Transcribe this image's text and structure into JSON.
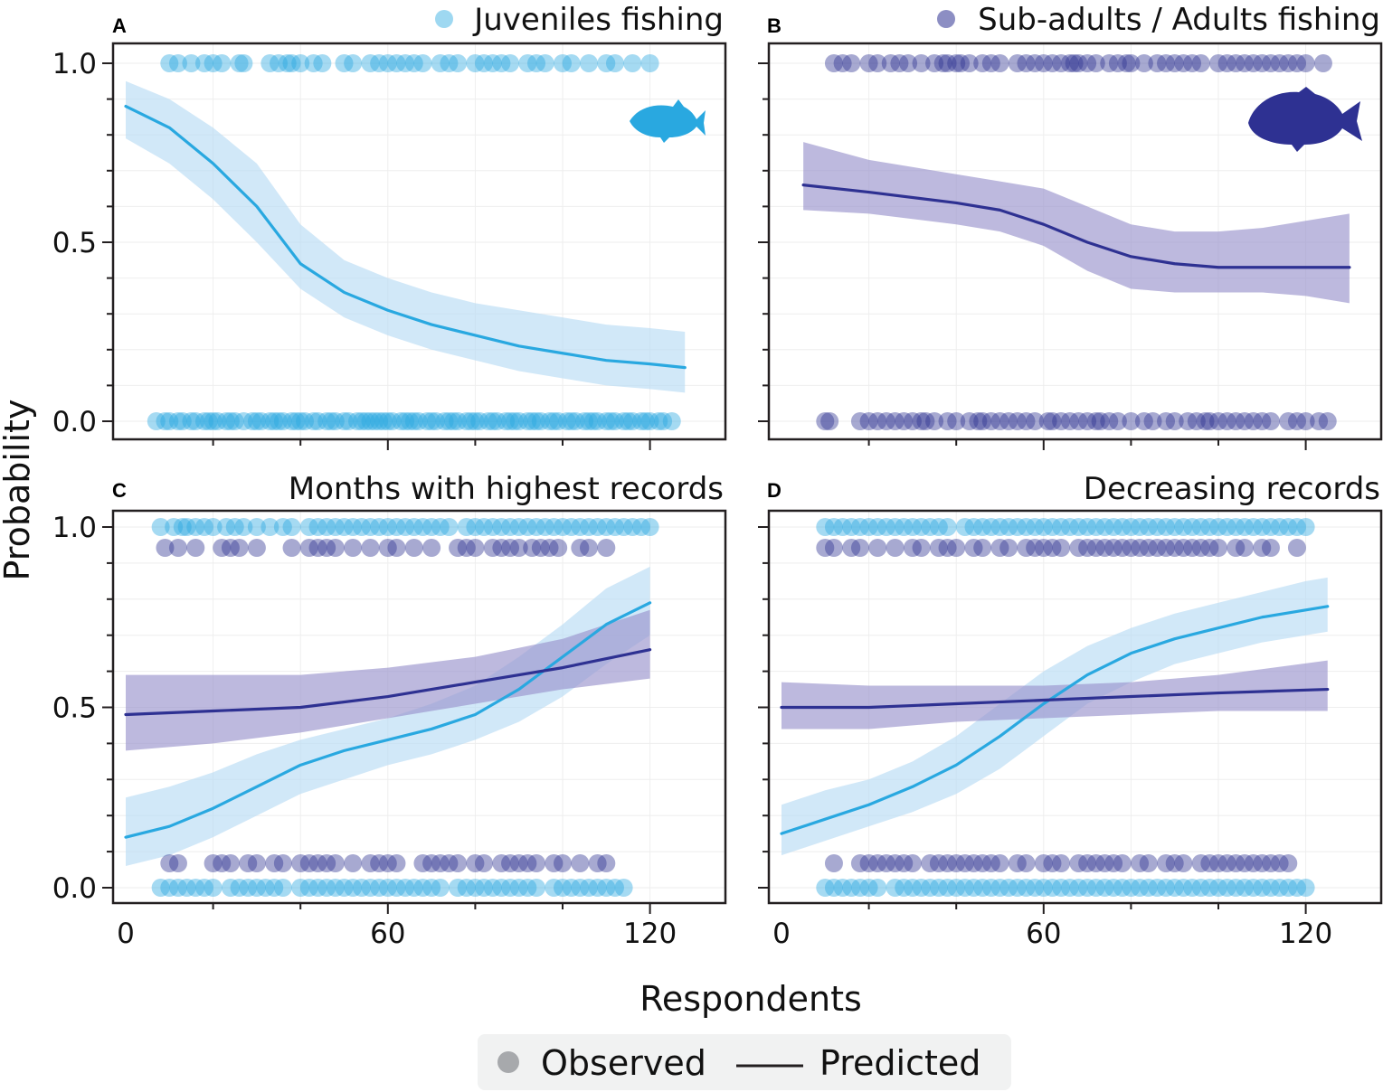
{
  "figure": {
    "ylabel": "Probability",
    "xlabel": "Respondents",
    "legend": {
      "observed_label": "Observed",
      "predicted_label": "Predicted"
    },
    "colors": {
      "light": "#29a8e0",
      "dark": "#2e3192",
      "light_band": "#b8dcf5",
      "dark_band": "#9a93cc",
      "grid": "#eeeeee"
    },
    "icons": [
      "fish-silhouette-juvenile-icon",
      "fish-silhouette-adult-icon"
    ]
  },
  "chart_data": [
    {
      "type": "line",
      "panel": "A",
      "title": "Juveniles fishing",
      "legend_entry": "Juveniles fishing",
      "xlim": [
        0,
        133
      ],
      "ylim": [
        0,
        1
      ],
      "x_ticks": [
        0,
        60,
        120
      ],
      "y_ticks": [
        0.0,
        0.5,
        1.0
      ],
      "y_tick_labels": [
        "0.0",
        "0.5",
        "1.0"
      ],
      "x_tick_labels": [
        "",
        "",
        ""
      ],
      "series": [
        {
          "name": "Juveniles fishing",
          "color": "#29a8e0",
          "band_color": "#b8dcf5",
          "x": [
            0,
            10,
            20,
            30,
            40,
            50,
            60,
            70,
            80,
            90,
            100,
            110,
            120,
            128
          ],
          "y": [
            0.88,
            0.82,
            0.72,
            0.6,
            0.44,
            0.36,
            0.31,
            0.27,
            0.24,
            0.21,
            0.19,
            0.17,
            0.16,
            0.15
          ],
          "lower": [
            0.79,
            0.72,
            0.62,
            0.5,
            0.37,
            0.29,
            0.24,
            0.2,
            0.17,
            0.14,
            0.12,
            0.1,
            0.09,
            0.08
          ],
          "upper": [
            0.95,
            0.9,
            0.82,
            0.72,
            0.55,
            0.45,
            0.4,
            0.36,
            0.33,
            0.31,
            0.29,
            0.27,
            0.26,
            0.25
          ],
          "observed_1": [
            10,
            12,
            15,
            18,
            20,
            22,
            26,
            27,
            33,
            35,
            37,
            38,
            40,
            43,
            45,
            50,
            52,
            56,
            58,
            60,
            62,
            64,
            66,
            68,
            72,
            74,
            76,
            80,
            82,
            84,
            86,
            88,
            92,
            94,
            96,
            100,
            102,
            106,
            110,
            112,
            116,
            120
          ],
          "observed_0": [
            7,
            9,
            10,
            12,
            13,
            15,
            16,
            18,
            19,
            20,
            21,
            23,
            24,
            25,
            27,
            29,
            30,
            31,
            33,
            34,
            35,
            36,
            38,
            39,
            40,
            41,
            43,
            44,
            46,
            47,
            48,
            50,
            51,
            53,
            54,
            55,
            56,
            57,
            58,
            59,
            60,
            61,
            63,
            64,
            65,
            66,
            67,
            69,
            70,
            71,
            73,
            74,
            75,
            76,
            78,
            79,
            80,
            81,
            83,
            84,
            85,
            87,
            88,
            89,
            90,
            92,
            93,
            94,
            95,
            97,
            98,
            99,
            101,
            102,
            103,
            105,
            106,
            107,
            108,
            110,
            111,
            112,
            114,
            115,
            116,
            118,
            119,
            120,
            122,
            123,
            125
          ]
        }
      ]
    },
    {
      "type": "line",
      "panel": "B",
      "title": "Sub-adults / Adults fishing",
      "legend_entry": "Sub-adults / Adults fishing",
      "xlim": [
        0,
        133
      ],
      "ylim": [
        0,
        1
      ],
      "x_ticks": [
        0,
        60,
        120
      ],
      "y_ticks": [
        0.0,
        0.5,
        1.0
      ],
      "y_tick_labels": [
        "",
        "",
        ""
      ],
      "x_tick_labels": [
        "",
        "",
        ""
      ],
      "series": [
        {
          "name": "Sub-adults / Adults fishing",
          "color": "#2e3192",
          "band_color": "#9a93cc",
          "x": [
            5,
            20,
            40,
            50,
            60,
            70,
            80,
            90,
            100,
            110,
            120,
            130
          ],
          "y": [
            0.66,
            0.64,
            0.61,
            0.59,
            0.55,
            0.5,
            0.46,
            0.44,
            0.43,
            0.43,
            0.43,
            0.43
          ],
          "lower": [
            0.59,
            0.58,
            0.55,
            0.53,
            0.49,
            0.42,
            0.37,
            0.36,
            0.36,
            0.36,
            0.35,
            0.33
          ],
          "upper": [
            0.78,
            0.73,
            0.69,
            0.67,
            0.65,
            0.6,
            0.55,
            0.53,
            0.53,
            0.54,
            0.56,
            0.58
          ]
        }
      ],
      "observed_1": [
        12,
        14,
        16,
        20,
        22,
        25,
        27,
        29,
        32,
        35,
        37,
        38,
        40,
        41,
        43,
        46,
        48,
        50,
        54,
        56,
        58,
        60,
        62,
        64,
        66,
        67,
        68,
        70,
        72,
        75,
        77,
        79,
        80,
        83,
        86,
        88,
        90,
        92,
        94,
        96,
        100,
        102,
        104,
        106,
        108,
        110,
        112,
        114,
        116,
        118,
        120,
        124
      ],
      "observed_0": [
        10,
        11,
        18,
        20,
        22,
        24,
        26,
        28,
        30,
        32,
        33,
        35,
        38,
        40,
        43,
        45,
        46,
        48,
        50,
        52,
        54,
        56,
        58,
        61,
        62,
        64,
        66,
        68,
        70,
        72,
        73,
        75,
        77,
        80,
        83,
        85,
        88,
        90,
        93,
        95,
        97,
        98,
        100,
        102,
        104,
        106,
        108,
        110,
        112,
        116,
        118,
        120,
        123,
        125
      ]
    },
    {
      "type": "line",
      "panel": "C",
      "title": "Months with highest records",
      "xlim": [
        -3,
        133
      ],
      "ylim": [
        0,
        1
      ],
      "x_ticks": [
        0,
        60,
        120
      ],
      "y_ticks": [
        0.0,
        0.5,
        1.0
      ],
      "y_tick_labels": [
        "0.0",
        "0.5",
        "1.0"
      ],
      "x_tick_labels": [
        "0",
        "60",
        "120"
      ],
      "series": [
        {
          "name": "Juveniles fishing",
          "color": "#29a8e0",
          "band_color": "#b8dcf5",
          "x": [
            0,
            10,
            20,
            30,
            40,
            50,
            60,
            70,
            80,
            90,
            100,
            110,
            120
          ],
          "y": [
            0.14,
            0.17,
            0.22,
            0.28,
            0.34,
            0.38,
            0.41,
            0.44,
            0.48,
            0.55,
            0.64,
            0.73,
            0.79
          ],
          "lower": [
            0.06,
            0.09,
            0.14,
            0.2,
            0.26,
            0.3,
            0.34,
            0.37,
            0.41,
            0.46,
            0.53,
            0.62,
            0.7
          ],
          "upper": [
            0.25,
            0.28,
            0.32,
            0.37,
            0.41,
            0.44,
            0.47,
            0.51,
            0.56,
            0.64,
            0.73,
            0.83,
            0.89
          ]
        },
        {
          "name": "Sub-adults / Adults fishing",
          "color": "#2e3192",
          "band_color": "#9a93cc",
          "x": [
            0,
            20,
            40,
            60,
            80,
            100,
            120
          ],
          "y": [
            0.48,
            0.49,
            0.5,
            0.53,
            0.57,
            0.61,
            0.66
          ],
          "lower": [
            0.38,
            0.4,
            0.43,
            0.47,
            0.51,
            0.55,
            0.58
          ],
          "upper": [
            0.59,
            0.59,
            0.59,
            0.61,
            0.64,
            0.69,
            0.77
          ]
        }
      ],
      "observed_light_1": [
        8,
        11,
        13,
        14,
        16,
        18,
        20,
        23,
        25,
        27,
        30,
        33,
        36,
        38,
        42,
        44,
        46,
        48,
        50,
        52,
        54,
        56,
        58,
        60,
        62,
        64,
        66,
        68,
        70,
        72,
        74,
        78,
        80,
        82,
        84,
        86,
        88,
        90,
        92,
        94,
        96,
        98,
        100,
        102,
        104,
        106,
        108,
        110,
        112,
        114,
        116,
        118,
        120
      ],
      "observed_dark_1": [
        9,
        12,
        16,
        22,
        24,
        26,
        30,
        38,
        42,
        44,
        46,
        48,
        52,
        56,
        60,
        62,
        66,
        70,
        76,
        78,
        80,
        84,
        86,
        88,
        90,
        93,
        95,
        97,
        99,
        104,
        106,
        110
      ],
      "observed_dark_0": [
        10,
        12,
        20,
        22,
        24,
        28,
        30,
        34,
        36,
        40,
        42,
        44,
        46,
        48,
        52,
        56,
        58,
        60,
        62,
        68,
        70,
        72,
        74,
        76,
        80,
        82,
        86,
        88,
        90,
        92,
        94,
        98,
        100,
        104,
        108,
        110
      ],
      "observed_light_0": [
        8,
        10,
        12,
        14,
        16,
        18,
        20,
        24,
        26,
        28,
        30,
        32,
        34,
        36,
        40,
        42,
        44,
        46,
        48,
        50,
        52,
        54,
        56,
        58,
        60,
        62,
        64,
        66,
        68,
        70,
        72,
        76,
        78,
        80,
        82,
        84,
        86,
        88,
        90,
        92,
        94,
        98,
        100,
        102,
        104,
        106,
        108,
        110,
        112,
        114
      ]
    },
    {
      "type": "line",
      "panel": "D",
      "title": "Decreasing records",
      "xlim": [
        -3,
        133
      ],
      "ylim": [
        0,
        1
      ],
      "x_ticks": [
        0,
        60,
        120
      ],
      "y_ticks": [
        0.0,
        0.5,
        1.0
      ],
      "y_tick_labels": [
        "",
        "",
        ""
      ],
      "x_tick_labels": [
        "0",
        "60",
        "120"
      ],
      "series": [
        {
          "name": "Juveniles fishing",
          "color": "#29a8e0",
          "band_color": "#b8dcf5",
          "x": [
            0,
            10,
            20,
            30,
            40,
            50,
            60,
            70,
            80,
            90,
            100,
            110,
            120,
            125
          ],
          "y": [
            0.15,
            0.19,
            0.23,
            0.28,
            0.34,
            0.42,
            0.51,
            0.59,
            0.65,
            0.69,
            0.72,
            0.75,
            0.77,
            0.78
          ],
          "lower": [
            0.09,
            0.13,
            0.17,
            0.21,
            0.26,
            0.33,
            0.42,
            0.51,
            0.57,
            0.62,
            0.65,
            0.68,
            0.7,
            0.71
          ],
          "upper": [
            0.23,
            0.27,
            0.3,
            0.35,
            0.42,
            0.51,
            0.6,
            0.67,
            0.72,
            0.76,
            0.79,
            0.82,
            0.85,
            0.86
          ]
        },
        {
          "name": "Sub-adults / Adults fishing",
          "color": "#2e3192",
          "band_color": "#9a93cc",
          "x": [
            0,
            20,
            40,
            60,
            80,
            100,
            125
          ],
          "y": [
            0.5,
            0.5,
            0.51,
            0.52,
            0.53,
            0.54,
            0.55
          ],
          "lower": [
            0.44,
            0.44,
            0.46,
            0.47,
            0.48,
            0.49,
            0.49
          ],
          "upper": [
            0.57,
            0.56,
            0.56,
            0.56,
            0.57,
            0.59,
            0.63
          ]
        }
      ],
      "observed_light_1": [
        10,
        12,
        14,
        16,
        18,
        20,
        22,
        24,
        26,
        28,
        30,
        32,
        34,
        36,
        38,
        42,
        44,
        46,
        48,
        50,
        52,
        54,
        56,
        58,
        60,
        62,
        64,
        66,
        68,
        70,
        72,
        74,
        76,
        78,
        80,
        82,
        84,
        86,
        88,
        90,
        92,
        94,
        96,
        98,
        100,
        102,
        104,
        106,
        108,
        110,
        112,
        114,
        116,
        118,
        120
      ],
      "observed_dark_1": [
        10,
        12,
        16,
        18,
        22,
        26,
        30,
        32,
        36,
        38,
        40,
        44,
        46,
        50,
        52,
        56,
        58,
        60,
        62,
        64,
        68,
        70,
        72,
        74,
        76,
        78,
        80,
        82,
        84,
        86,
        88,
        90,
        92,
        94,
        96,
        98,
        100,
        104,
        106,
        110,
        112,
        118
      ],
      "observed_dark_0": [
        12,
        18,
        20,
        22,
        24,
        26,
        28,
        30,
        34,
        36,
        38,
        40,
        42,
        44,
        46,
        48,
        50,
        54,
        56,
        60,
        62,
        64,
        68,
        70,
        72,
        74,
        76,
        78,
        82,
        84,
        88,
        90,
        92,
        96,
        98,
        100,
        102,
        104,
        106,
        108,
        110,
        112,
        114,
        116
      ],
      "observed_light_0": [
        10,
        12,
        14,
        16,
        18,
        20,
        22,
        26,
        28,
        30,
        32,
        34,
        36,
        38,
        40,
        42,
        44,
        46,
        48,
        50,
        52,
        54,
        56,
        58,
        60,
        62,
        64,
        66,
        68,
        70,
        72,
        74,
        76,
        78,
        80,
        82,
        84,
        86,
        88,
        90,
        92,
        94,
        96,
        98,
        100,
        102,
        104,
        106,
        108,
        110,
        112,
        114,
        116,
        118,
        120
      ]
    }
  ]
}
